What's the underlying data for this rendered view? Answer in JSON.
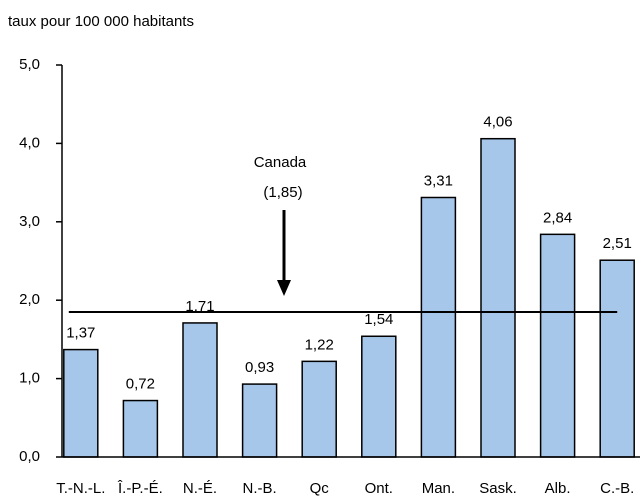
{
  "chart_data": {
    "type": "bar",
    "y_axis_label": "taux pour 100 000 habitants",
    "categories": [
      "T.-N.-L.",
      "Î.-P.-É.",
      "N.-É.",
      "N.-B.",
      "Qc",
      "Ont.",
      "Man.",
      "Sask.",
      "Alb.",
      "C.-B."
    ],
    "values": [
      1.37,
      0.72,
      1.71,
      0.93,
      1.22,
      1.54,
      3.31,
      4.06,
      2.84,
      2.51
    ],
    "value_labels": [
      "1,37",
      "0,72",
      "1,71",
      "0,93",
      "1,22",
      "1,54",
      "3,31",
      "4,06",
      "2,84",
      "2,51"
    ],
    "color": "#a7c7ea",
    "ylim": [
      0,
      5
    ],
    "yticks": [
      {
        "value": 0,
        "label": "0,0"
      },
      {
        "value": 1,
        "label": "1,0"
      },
      {
        "value": 2,
        "label": "2,0"
      },
      {
        "value": 3,
        "label": "3,0"
      },
      {
        "value": 4,
        "label": "4,0"
      },
      {
        "value": 5,
        "label": "5,0"
      }
    ],
    "reference_line": {
      "value": 1.85,
      "label": "Canada",
      "value_label": "(1,85)"
    }
  }
}
